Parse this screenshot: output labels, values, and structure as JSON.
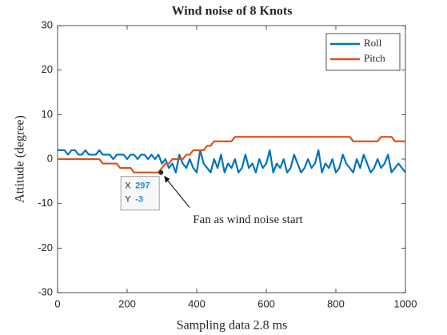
{
  "chart_data": {
    "type": "line",
    "title": "Wind noise of 8 Knots",
    "xlabel": "Sampling data 2.8 ms",
    "ylabel": "Attitude (degree)",
    "x": [
      0,
      10,
      20,
      30,
      40,
      50,
      60,
      70,
      80,
      90,
      100,
      110,
      120,
      130,
      140,
      150,
      160,
      170,
      180,
      190,
      200,
      210,
      220,
      230,
      240,
      250,
      260,
      270,
      280,
      290,
      300,
      310,
      320,
      330,
      340,
      350,
      360,
      370,
      380,
      390,
      400,
      410,
      420,
      430,
      440,
      450,
      460,
      470,
      480,
      490,
      500,
      510,
      520,
      530,
      540,
      550,
      560,
      570,
      580,
      590,
      600,
      610,
      620,
      630,
      640,
      650,
      660,
      670,
      680,
      690,
      700,
      710,
      720,
      730,
      740,
      750,
      760,
      770,
      780,
      790,
      800,
      810,
      820,
      830,
      840,
      850,
      860,
      870,
      880,
      890,
      900,
      910,
      920,
      930,
      940,
      950,
      960,
      970,
      980,
      990,
      1000
    ],
    "series": [
      {
        "name": "Roll",
        "color": "#0072bd",
        "values": [
          2,
          2,
          2,
          1,
          2,
          2,
          1,
          1,
          2,
          1,
          1,
          1,
          2,
          1,
          1,
          1,
          0,
          1,
          1,
          1,
          0,
          1,
          1,
          0,
          1,
          1,
          0,
          1,
          0,
          1,
          -1,
          0,
          -2,
          -1,
          -3,
          1,
          -1,
          -2,
          0,
          -2,
          -3,
          2,
          -1,
          -2,
          -3,
          0,
          -2,
          1,
          -3,
          -1,
          -2,
          0,
          -3,
          -2,
          1,
          -2,
          -1,
          -3,
          0,
          -2,
          -1,
          2,
          -3,
          -1,
          -2,
          0,
          -3,
          -2,
          1,
          -1,
          -3,
          -2,
          0,
          -2,
          -1,
          2,
          -3,
          -1,
          -2,
          0,
          -3,
          -2,
          1,
          -1,
          -2,
          -3,
          0,
          -2,
          1,
          -1,
          -3,
          -2,
          0,
          -2,
          -1,
          1,
          -3,
          -2,
          -1,
          -2,
          -3
        ]
      },
      {
        "name": "Pitch",
        "color": "#d95319",
        "values": [
          0,
          0,
          0,
          0,
          0,
          0,
          0,
          0,
          0,
          0,
          0,
          0,
          0,
          -1,
          -1,
          -1,
          -1,
          -1,
          -2,
          -2,
          -2,
          -2,
          -3,
          -3,
          -3,
          -3,
          -3,
          -3,
          -3,
          -3,
          -2,
          -1,
          -1,
          0,
          0,
          0,
          0,
          1,
          1,
          2,
          2,
          2,
          2,
          3,
          3,
          4,
          4,
          4,
          4,
          4,
          4,
          5,
          5,
          5,
          5,
          5,
          5,
          5,
          5,
          5,
          5,
          5,
          5,
          5,
          5,
          5,
          5,
          5,
          5,
          5,
          5,
          5,
          5,
          5,
          5,
          5,
          5,
          5,
          5,
          5,
          5,
          5,
          5,
          5,
          5,
          4,
          4,
          4,
          4,
          4,
          4,
          4,
          4,
          5,
          5,
          5,
          5,
          4,
          4,
          4,
          4
        ]
      }
    ],
    "xlim": [
      0,
      1000
    ],
    "xticks": [
      0,
      200,
      400,
      600,
      800,
      1000
    ],
    "ylim": [
      -30,
      30
    ],
    "yticks": [
      -30,
      -20,
      -10,
      0,
      10,
      20,
      30
    ],
    "legend": "top-right",
    "datatip": {
      "x_label": "X",
      "x": 297,
      "y_label": "Y",
      "y": -3
    },
    "annotation": "Fan as wind noise start"
  }
}
